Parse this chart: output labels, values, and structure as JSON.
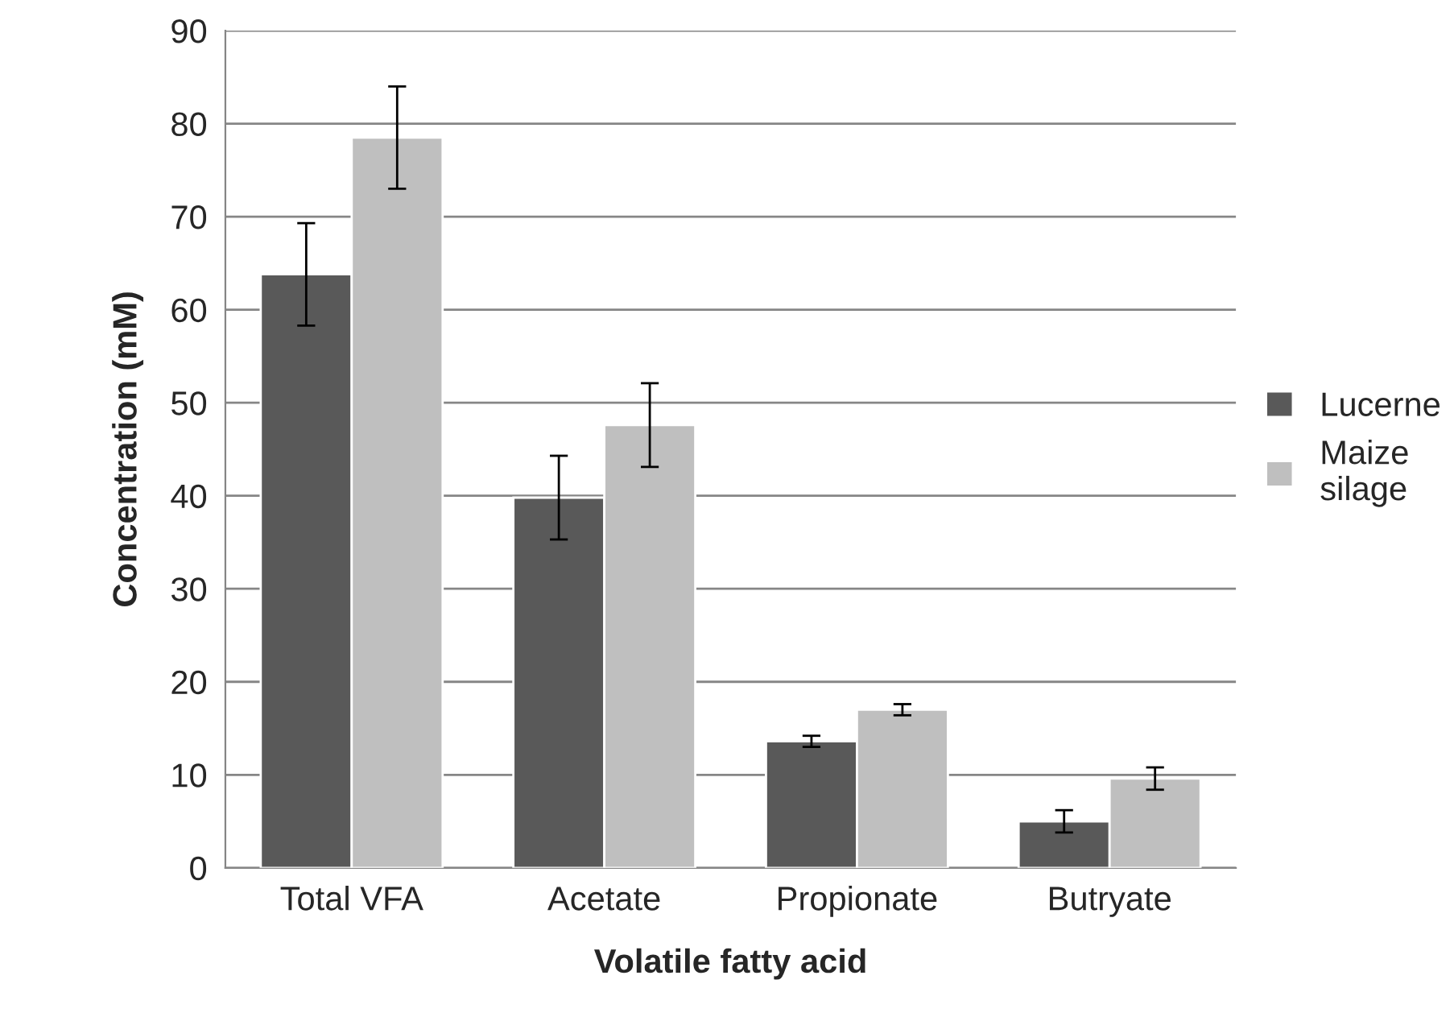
{
  "chart_data": {
    "type": "bar",
    "xlabel": "Volatile fatty acid",
    "ylabel": "Concentration (mM)",
    "categories": [
      "Total VFA",
      "Acetate",
      "Propionate",
      "Butryate"
    ],
    "series": [
      {
        "name": "Lucerne",
        "color": "#595959",
        "values": [
          63.8,
          39.8,
          13.6,
          5.0
        ],
        "errors": [
          5.5,
          4.5,
          0.6,
          1.2
        ]
      },
      {
        "name": "Maize silage",
        "color": "#bfbfbf",
        "values": [
          78.5,
          47.6,
          17.0,
          9.6
        ],
        "errors": [
          5.5,
          4.5,
          0.6,
          1.2
        ]
      }
    ],
    "ylim": [
      0,
      90
    ],
    "yticks": [
      0,
      10,
      20,
      30,
      40,
      50,
      60,
      70,
      80,
      90
    ],
    "grid": "y",
    "legend": "right"
  }
}
